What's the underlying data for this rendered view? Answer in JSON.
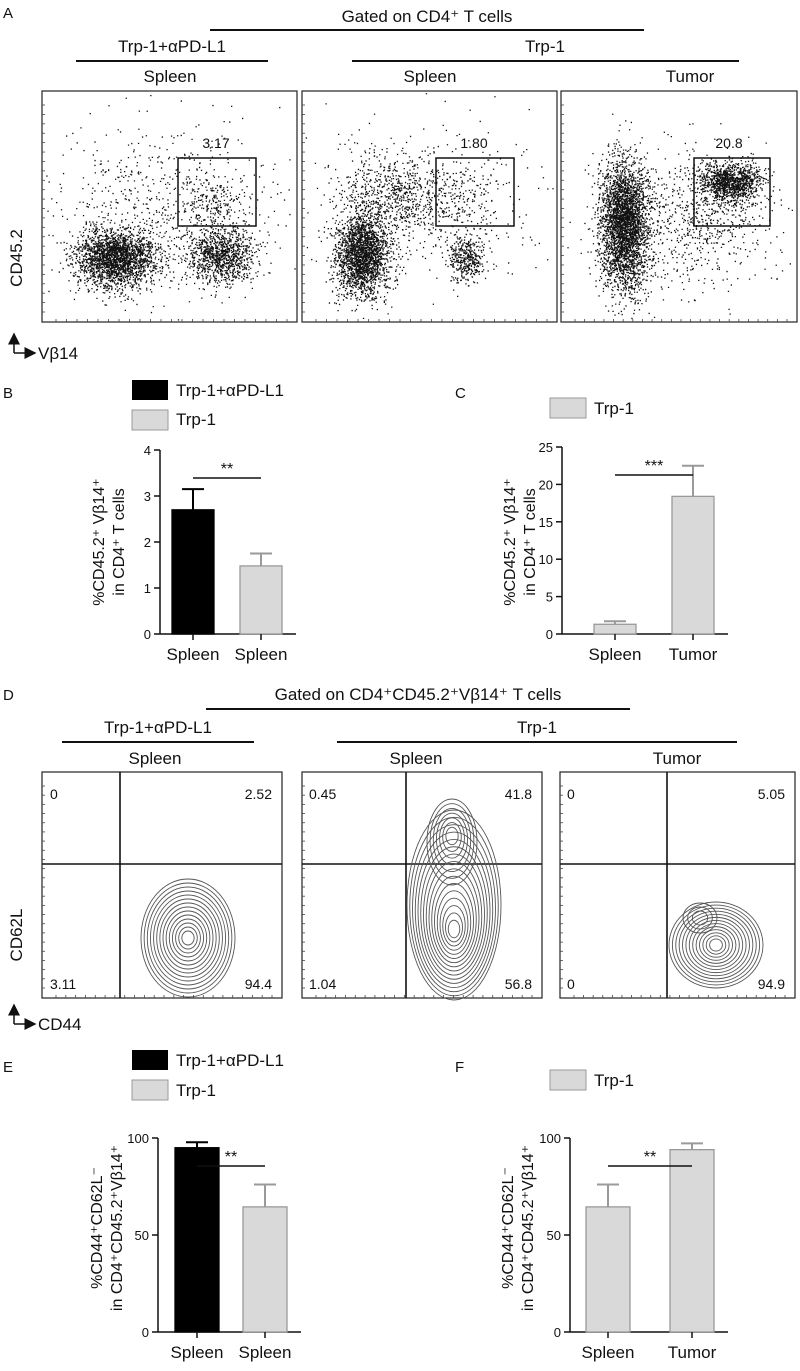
{
  "panel_letters": {
    "A": "A",
    "B": "B",
    "C": "C",
    "D": "D",
    "E": "E",
    "F": "F"
  },
  "panel_a": {
    "gate_label": "Gated on CD4⁺ T cells",
    "group_left": "Trp-1+αPD-L1",
    "group_right": "Trp-1",
    "plots": [
      {
        "tissue": "Spleen",
        "gate_value": "3.17"
      },
      {
        "tissue": "Spleen",
        "gate_value": "1.80"
      },
      {
        "tissue": "Tumor",
        "gate_value": "20.8"
      }
    ],
    "y_axis": "CD45.2",
    "x_axis": "Vβ14"
  },
  "panel_d": {
    "gate_label": "Gated on CD4⁺CD45.2⁺Vβ14⁺ T cells",
    "group_left": "Trp-1+αPD-L1",
    "group_right": "Trp-1",
    "plots": [
      {
        "tissue": "Spleen",
        "q_ul": "0",
        "q_ur": "2.52",
        "q_ll": "3.11",
        "q_lr": "94.4"
      },
      {
        "tissue": "Spleen",
        "q_ul": "0.45",
        "q_ur": "41.8",
        "q_ll": "1.04",
        "q_lr": "56.8"
      },
      {
        "tissue": "Tumor",
        "q_ul": "0",
        "q_ur": "5.05",
        "q_ll": "0",
        "q_lr": "94.9"
      }
    ],
    "y_axis": "CD62L",
    "x_axis": "CD44"
  },
  "colors": {
    "treated": "#000000",
    "control": "#d9d9d9",
    "control_edge": "#9a9a9a"
  },
  "chart_data": [
    {
      "panel": "B",
      "type": "bar",
      "legend": [
        "Trp-1+αPD-L1",
        "Trp-1"
      ],
      "ylabel_main": "%CD45.2⁺ Vβ14⁺",
      "ylabel_sub": "in CD4⁺ T cells",
      "categories": [
        "Spleen",
        "Spleen"
      ],
      "values": [
        2.7,
        1.48
      ],
      "errors": [
        0.45,
        0.27
      ],
      "fills": [
        "treated",
        "control"
      ],
      "ylim": [
        0,
        4
      ],
      "yticks": [
        "0",
        "1",
        "2",
        "3",
        "4"
      ],
      "significance": "**"
    },
    {
      "panel": "C",
      "type": "bar",
      "legend": [
        "Trp-1"
      ],
      "ylabel_main": "%CD45.2⁺ Vβ14⁺",
      "ylabel_sub": "in CD4⁺ T cells",
      "categories": [
        "Spleen",
        "Tumor"
      ],
      "values": [
        1.3,
        18.4
      ],
      "errors": [
        0.4,
        4.1
      ],
      "fills": [
        "control",
        "control"
      ],
      "ylim": [
        0,
        25
      ],
      "yticks": [
        "0",
        "5",
        "10",
        "15",
        "20",
        "25"
      ],
      "significance": "***"
    },
    {
      "panel": "E",
      "type": "bar",
      "legend": [
        "Trp-1+αPD-L1",
        "Trp-1"
      ],
      "ylabel_main": "%CD44⁺CD62L⁻",
      "ylabel_sub": "in CD4⁺CD45.2⁺Vβ14⁺",
      "categories": [
        "Spleen",
        "Spleen"
      ],
      "values": [
        95,
        64.5
      ],
      "errors": [
        2.8,
        11.5
      ],
      "fills": [
        "treated",
        "control"
      ],
      "ylim": [
        0,
        100
      ],
      "yticks": [
        "0",
        "50",
        "100"
      ],
      "significance": "**"
    },
    {
      "panel": "F",
      "type": "bar",
      "legend": [
        "Trp-1"
      ],
      "ylabel_main": "%CD44⁺CD62L⁻",
      "ylabel_sub": "in CD4⁺CD45.2⁺Vβ14⁺",
      "categories": [
        "Spleen",
        "Tumor"
      ],
      "values": [
        64.5,
        94
      ],
      "errors": [
        11.5,
        3.2
      ],
      "fills": [
        "control",
        "control"
      ],
      "ylim": [
        0,
        100
      ],
      "yticks": [
        "0",
        "50",
        "100"
      ],
      "significance": "**"
    }
  ]
}
